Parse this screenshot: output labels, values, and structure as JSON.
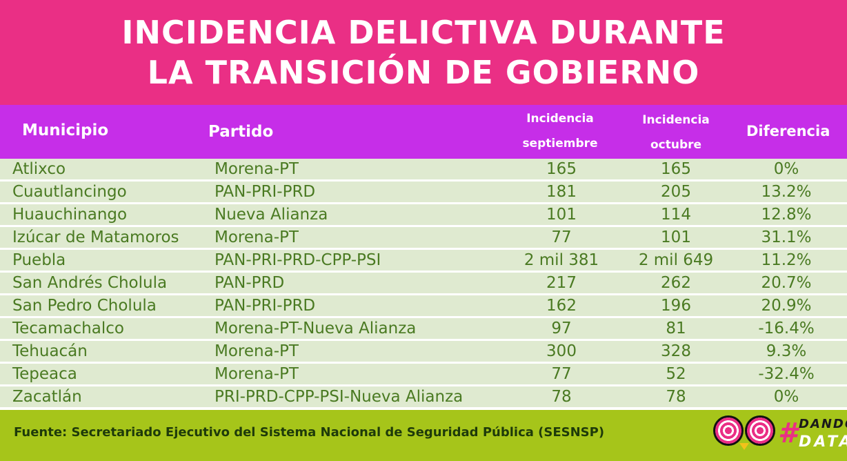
{
  "title": {
    "line1": "INCIDENCIA DELICTIVA DURANTE",
    "line2": "LA TRANSICIÓN DE GOBIERNO"
  },
  "headers": {
    "municipio": "Municipio",
    "partido": "Partido",
    "sep_line1": "Incidencia",
    "sep_line2": "septiembre",
    "oct_line1": "Incidencia",
    "oct_line2": "octubre",
    "diferencia": "Diferencia"
  },
  "rows": [
    {
      "municipio": "Atlixco",
      "partido": "Morena-PT",
      "septiembre": "165",
      "octubre": "165",
      "diferencia": "0%"
    },
    {
      "municipio": "Cuautlancingo",
      "partido": "PAN-PRI-PRD",
      "septiembre": "181",
      "octubre": "205",
      "diferencia": "13.2%"
    },
    {
      "municipio": "Huauchinango",
      "partido": "Nueva Alianza",
      "septiembre": "101",
      "octubre": "114",
      "diferencia": "12.8%"
    },
    {
      "municipio": "Izúcar de Matamoros",
      "partido": "Morena-PT",
      "septiembre": "77",
      "octubre": "101",
      "diferencia": "31.1%"
    },
    {
      "municipio": "Puebla",
      "partido": "PAN-PRI-PRD-CPP-PSI",
      "septiembre": "2 mil 381",
      "octubre": "2 mil 649",
      "diferencia": "11.2%"
    },
    {
      "municipio": "San Andrés Cholula",
      "partido": "PAN-PRD",
      "septiembre": "217",
      "octubre": "262",
      "diferencia": "20.7%"
    },
    {
      "municipio": "San Pedro Cholula",
      "partido": "PAN-PRI-PRD",
      "septiembre": "162",
      "octubre": "196",
      "diferencia": "20.9%"
    },
    {
      "municipio": "Tecamachalco",
      "partido": "Morena-PT-Nueva Alianza",
      "septiembre": "97",
      "octubre": "81",
      "diferencia": "-16.4%"
    },
    {
      "municipio": "Tehuacán",
      "partido": "Morena-PT",
      "septiembre": "300",
      "octubre": "328",
      "diferencia": "9.3%"
    },
    {
      "municipio": "Tepeaca",
      "partido": "Morena-PT",
      "septiembre": "77",
      "octubre": "52",
      "diferencia": "-32.4%"
    },
    {
      "municipio": "Zacatlán",
      "partido": "PRI-PRD-CPP-PSI-Nueva Alianza",
      "septiembre": "78",
      "octubre": "78",
      "diferencia": "0%"
    }
  ],
  "footer": {
    "source": "Fuente: Secretariado Ejecutivo del Sistema Nacional de Seguridad Pública (SESNSP)",
    "logo_hash": "#",
    "logo_word1": "DANDO",
    "logo_word2": "DATA"
  },
  "colors": {
    "title_bg": "#ea2f85",
    "header_bg": "#c62ee8",
    "row_bg": "#dfead0",
    "row_text": "#4a7a22",
    "footer_bg": "#a6c51a"
  }
}
